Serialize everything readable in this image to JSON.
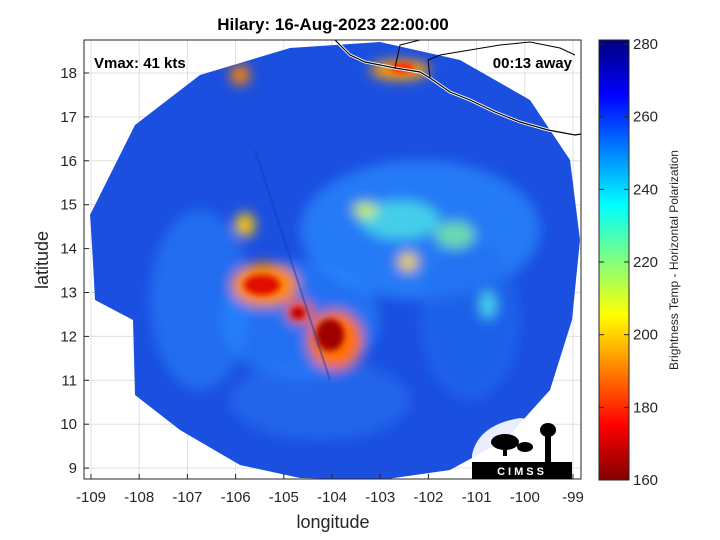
{
  "title": "Hilary: 16-Aug-2023 22:00:00",
  "vmax_label": "Vmax: 41 kts",
  "time_away_label": "00:13 away",
  "x_axis_title": "longitude",
  "y_axis_title": "latitude",
  "x_ticks": [
    "-109",
    "-108",
    "-107",
    "-106",
    "-105",
    "-104",
    "-103",
    "-102",
    "-101",
    "-100",
    "-99"
  ],
  "y_ticks": [
    "18",
    "17",
    "16",
    "15",
    "14",
    "13",
    "12",
    "11",
    "10",
    "9"
  ],
  "colorbar": {
    "label": "Brightness Temp - Horizontal Polarization",
    "ticks": [
      "280",
      "260",
      "240",
      "220",
      "200",
      "180",
      "160"
    ],
    "range": [
      160,
      280
    ],
    "colormap": "jet"
  },
  "logo_text": "CIMSS",
  "colors": {
    "background_swath": "#1a4fe0",
    "cold_core": "#a00000",
    "coastline": "#000000"
  }
}
